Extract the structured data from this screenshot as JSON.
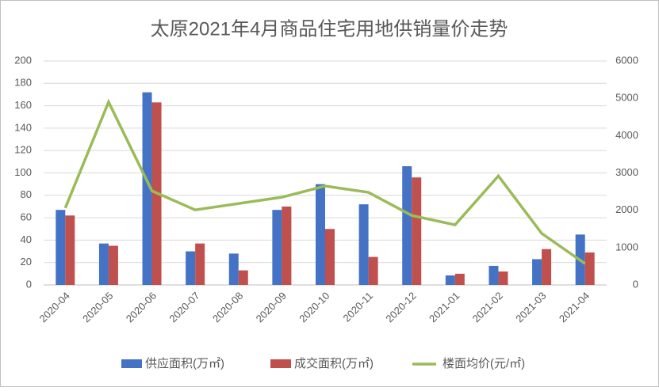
{
  "chart_data": {
    "type": "bar-line",
    "title": "太原2021年4月商品住宅用地供销量价走势",
    "categories": [
      "2020-04",
      "2020-05",
      "2020-06",
      "2020-07",
      "2020-08",
      "2020-09",
      "2020-10",
      "2020-11",
      "2020-12",
      "2021-01",
      "2021-02",
      "2021-03",
      "2021-04"
    ],
    "series": [
      {
        "name": "供应面积(万㎡)",
        "color": "#4472c4",
        "type": "bar",
        "values": [
          67,
          37,
          172,
          30,
          28,
          67,
          90,
          72,
          106,
          8.5,
          17,
          23,
          45
        ]
      },
      {
        "name": "成交面积(万㎡)",
        "color": "#c0504d",
        "type": "bar",
        "values": [
          62,
          35,
          163,
          37,
          13,
          70,
          50,
          25,
          96,
          10,
          12,
          32,
          29
        ]
      },
      {
        "name": "楼面均价(元/㎡)",
        "color": "#9bbb59",
        "type": "line",
        "axis": "y2",
        "values": [
          2060,
          4900,
          2520,
          2010,
          2180,
          2350,
          2650,
          2480,
          1860,
          1610,
          2920,
          1380,
          570
        ]
      }
    ],
    "ylim": [
      0,
      200
    ],
    "yticks": [
      0,
      20,
      40,
      60,
      80,
      100,
      120,
      140,
      160,
      180,
      200
    ],
    "y2lim": [
      0,
      6000
    ],
    "y2ticks": [
      0,
      1000,
      2000,
      3000,
      4000,
      5000,
      6000
    ],
    "grid": true,
    "legend": "bottom"
  }
}
